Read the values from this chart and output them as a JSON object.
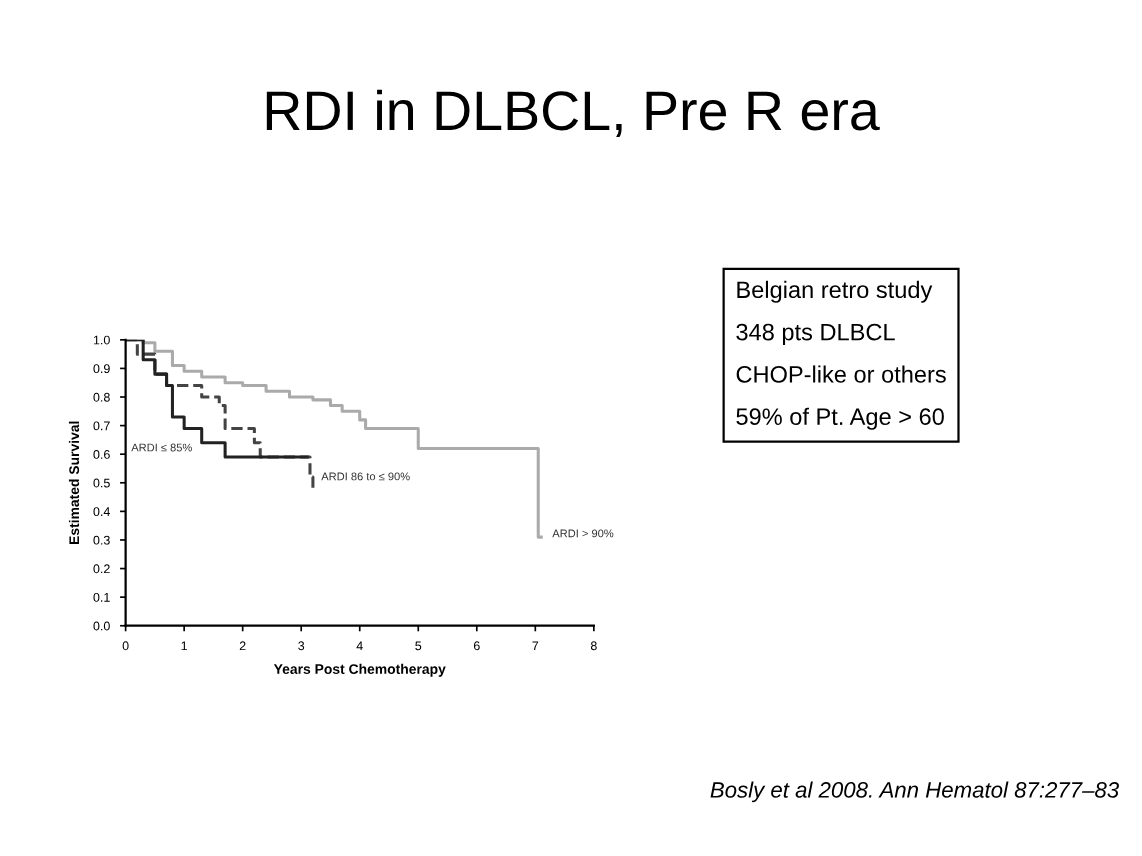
{
  "chart_data": {
    "type": "step",
    "title": "RDI in DLBCL, Pre R era",
    "xlabel": "Years Post Chemotherapy",
    "ylabel": "Estimated Survival",
    "xlim": [
      0,
      8
    ],
    "xticks": [
      0,
      1,
      2,
      3,
      4,
      5,
      6,
      7,
      8
    ],
    "ylim": [
      0,
      1
    ],
    "yticks": [
      {
        "value": 0,
        "label": "0.0"
      },
      0.1,
      0.2,
      0.3,
      0.4,
      0.5,
      0.6,
      0.7,
      0.8,
      0.9,
      {
        "value": 1,
        "label": "1.0"
      }
    ],
    "grid": false,
    "legend": false,
    "marker": "none",
    "series": [
      {
        "color": "#aaaaaa",
        "line_style": "solid",
        "x": [
          0,
          0.3,
          0.5,
          0.8,
          1.0,
          1.3,
          1.7,
          2.0,
          2.4,
          2.8,
          3.2,
          3.5,
          3.7,
          4.0,
          4.1,
          5.0,
          6.8,
          7.05,
          7.1
        ],
        "values": [
          1.0,
          0.99,
          0.96,
          0.91,
          0.89,
          0.87,
          0.85,
          0.84,
          0.82,
          0.8,
          0.79,
          0.77,
          0.75,
          0.72,
          0.69,
          0.62,
          0.62,
          0.31,
          0.31
        ]
      },
      {
        "color": "#444444",
        "line_style": "dashed",
        "x": [
          0,
          0.2,
          0.5,
          0.7,
          1.3,
          1.6,
          1.7,
          2.1,
          2.2,
          2.3,
          3.1,
          3.15,
          3.2
        ],
        "values": [
          1.0,
          0.95,
          0.88,
          0.84,
          0.8,
          0.77,
          0.69,
          0.69,
          0.64,
          0.59,
          0.59,
          0.52,
          0.48
        ]
      },
      {
        "color": "#222222",
        "line_style": "solid",
        "x": [
          0,
          0.3,
          0.5,
          0.7,
          0.8,
          1.0,
          1.3,
          1.7,
          3.0,
          3.1
        ],
        "values": [
          1.0,
          0.93,
          0.88,
          0.84,
          0.73,
          0.69,
          0.64,
          0.59,
          0.59,
          0.59
        ]
      }
    ],
    "annotations": [
      "ARDI ≤ 85%",
      {
        "text": "ARDI 86 to ≤ 90%",
        "x": 3.2,
        "y": 0.48
      },
      {
        "text": "ARDI > 90%",
        "x": 7.1,
        "y": 0.31
      },
      "Belgian retro study",
      "348 pts DLBCL",
      "CHOP-like or others",
      "59% of Pt. Age > 60",
      "Bosly et al 2008. Ann Hematol 87:277–83"
    ]
  }
}
